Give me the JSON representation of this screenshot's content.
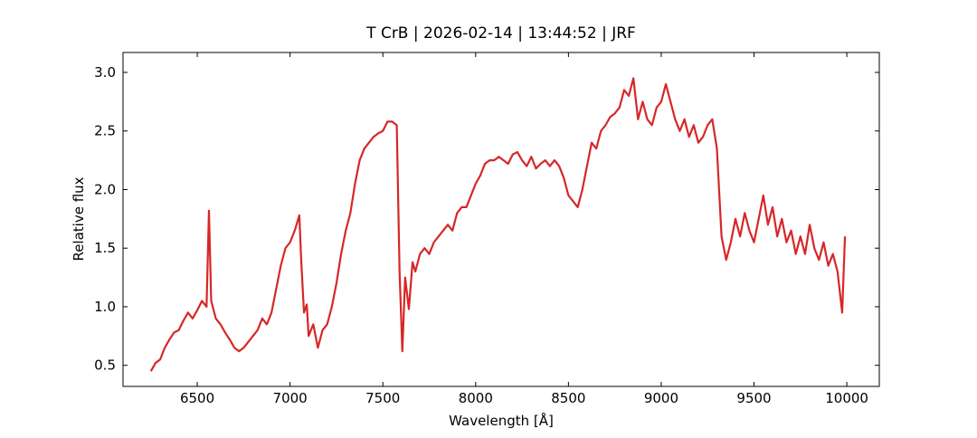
{
  "chart_data": {
    "type": "line",
    "title": "T CrB | 2026-02-14 | 13:44:52 | JRF",
    "x_label": "Wavelength [Å]",
    "y_label": "Relative flux",
    "xlim": [
      6100,
      10175
    ],
    "ylim": [
      0.32,
      3.17
    ],
    "xticks": [
      6500,
      7000,
      7500,
      8000,
      8500,
      9000,
      9500,
      10000
    ],
    "yticks": [
      0.5,
      1.0,
      1.5,
      2.0,
      2.5,
      3.0
    ],
    "grid": false,
    "x": [
      6250,
      6275,
      6300,
      6325,
      6350,
      6375,
      6400,
      6425,
      6450,
      6475,
      6500,
      6525,
      6550,
      6563,
      6575,
      6600,
      6625,
      6650,
      6675,
      6700,
      6725,
      6750,
      6775,
      6800,
      6825,
      6850,
      6875,
      6900,
      6925,
      6950,
      6975,
      7000,
      7025,
      7050,
      7060,
      7075,
      7090,
      7100,
      7125,
      7150,
      7175,
      7200,
      7225,
      7250,
      7275,
      7300,
      7325,
      7350,
      7375,
      7400,
      7425,
      7450,
      7475,
      7500,
      7525,
      7550,
      7575,
      7590,
      7605,
      7620,
      7640,
      7660,
      7675,
      7700,
      7725,
      7750,
      7775,
      7800,
      7825,
      7850,
      7875,
      7900,
      7925,
      7950,
      7975,
      8000,
      8025,
      8050,
      8075,
      8100,
      8125,
      8150,
      8175,
      8200,
      8225,
      8250,
      8275,
      8300,
      8325,
      8350,
      8375,
      8400,
      8425,
      8450,
      8475,
      8500,
      8525,
      8550,
      8575,
      8600,
      8625,
      8650,
      8675,
      8700,
      8725,
      8750,
      8775,
      8800,
      8825,
      8850,
      8875,
      8900,
      8925,
      8950,
      8975,
      9000,
      9025,
      9050,
      9075,
      9100,
      9125,
      9150,
      9175,
      9200,
      9225,
      9250,
      9275,
      9300,
      9325,
      9350,
      9375,
      9400,
      9425,
      9450,
      9475,
      9500,
      9525,
      9550,
      9575,
      9600,
      9625,
      9650,
      9675,
      9700,
      9725,
      9750,
      9775,
      9800,
      9825,
      9850,
      9875,
      9900,
      9925,
      9950,
      9975,
      9990
    ],
    "series": [
      {
        "name": "T CrB",
        "color": "#d62728",
        "values": [
          0.45,
          0.52,
          0.55,
          0.65,
          0.72,
          0.78,
          0.8,
          0.88,
          0.95,
          0.9,
          0.97,
          1.05,
          1.0,
          1.82,
          1.05,
          0.9,
          0.85,
          0.78,
          0.72,
          0.65,
          0.62,
          0.65,
          0.7,
          0.75,
          0.8,
          0.9,
          0.85,
          0.95,
          1.15,
          1.35,
          1.5,
          1.55,
          1.65,
          1.78,
          1.4,
          0.95,
          1.02,
          0.75,
          0.85,
          0.65,
          0.8,
          0.85,
          1.0,
          1.2,
          1.45,
          1.65,
          1.8,
          2.05,
          2.25,
          2.35,
          2.4,
          2.45,
          2.48,
          2.5,
          2.58,
          2.58,
          2.55,
          1.3,
          0.62,
          1.25,
          0.98,
          1.38,
          1.3,
          1.45,
          1.5,
          1.45,
          1.55,
          1.6,
          1.65,
          1.7,
          1.65,
          1.8,
          1.85,
          1.85,
          1.95,
          2.05,
          2.12,
          2.22,
          2.25,
          2.25,
          2.28,
          2.25,
          2.22,
          2.3,
          2.32,
          2.25,
          2.2,
          2.28,
          2.18,
          2.22,
          2.25,
          2.2,
          2.25,
          2.2,
          2.1,
          1.95,
          1.9,
          1.85,
          2.0,
          2.2,
          2.4,
          2.35,
          2.5,
          2.55,
          2.62,
          2.65,
          2.7,
          2.85,
          2.8,
          2.95,
          2.6,
          2.75,
          2.6,
          2.55,
          2.7,
          2.75,
          2.9,
          2.75,
          2.6,
          2.5,
          2.6,
          2.45,
          2.55,
          2.4,
          2.45,
          2.55,
          2.6,
          2.35,
          1.6,
          1.4,
          1.55,
          1.75,
          1.6,
          1.8,
          1.65,
          1.55,
          1.75,
          1.95,
          1.7,
          1.85,
          1.6,
          1.75,
          1.55,
          1.65,
          1.45,
          1.6,
          1.45,
          1.7,
          1.5,
          1.4,
          1.55,
          1.35,
          1.45,
          1.3,
          0.95,
          1.6
        ]
      }
    ]
  }
}
